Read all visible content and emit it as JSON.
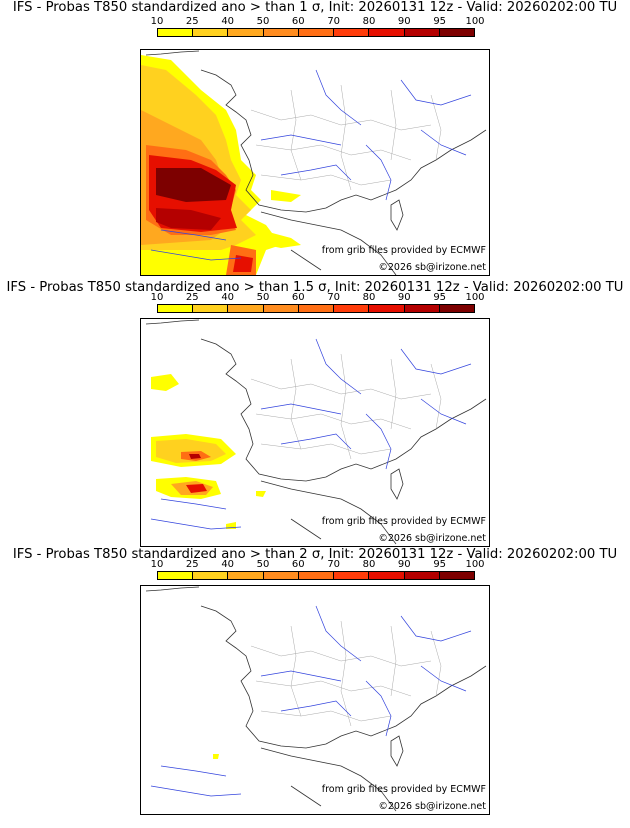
{
  "scale": {
    "labels": [
      "10",
      "25",
      "40",
      "50",
      "60",
      "70",
      "80",
      "90",
      "95",
      "100"
    ],
    "colors": [
      "#ffff00",
      "#ffd11f",
      "#ffa81f",
      "#ff8c1f",
      "#ff6e14",
      "#ff3c0a",
      "#e60f00",
      "#b40000",
      "#7d0000"
    ]
  },
  "panels": [
    {
      "title": "IFS - Probas T850  standardized ano > than 1 σ, Init: 20260131 12z - Valid: 20260202:00 TU",
      "source": "from grib files provided by ECMWF",
      "copyright": "©2026 sb@irizone.net"
    },
    {
      "title": "IFS - Probas T850  standardized ano > than 1.5 σ, Init: 20260131 12z - Valid: 20260202:00 TU",
      "source": "from grib files provided by ECMWF",
      "copyright": "©2026 sb@irizone.net"
    },
    {
      "title": "IFS - Probas T850  standardized ano > than 2 σ, Init: 20260131 12z - Valid: 20260202:00 TU",
      "source": "from grib files provided by ECMWF",
      "copyright": "©2026 sb@irizone.net"
    }
  ]
}
